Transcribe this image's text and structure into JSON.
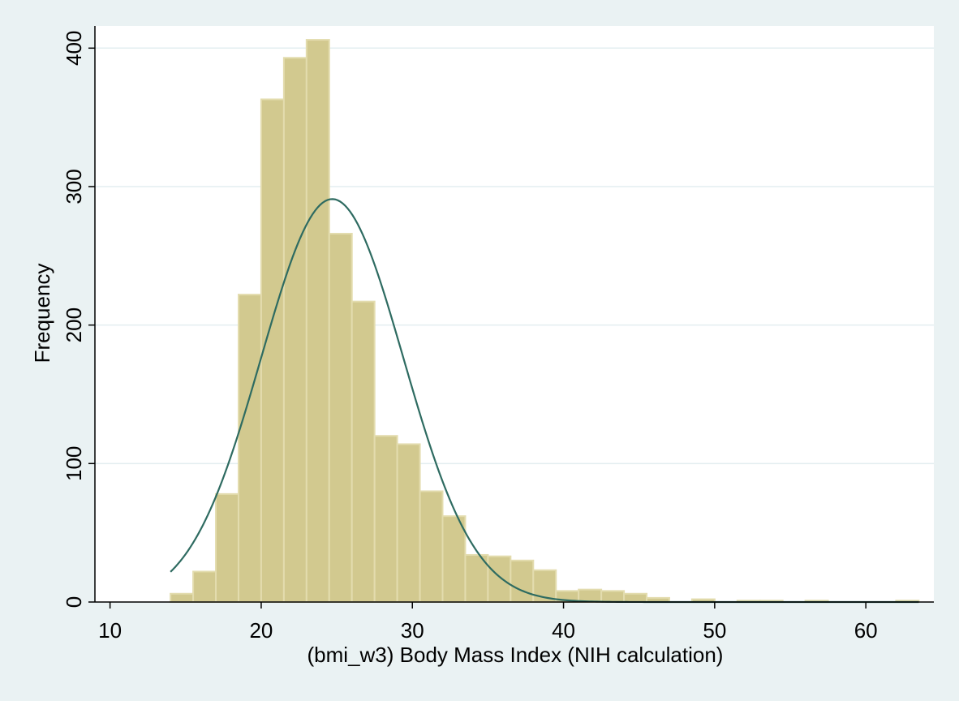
{
  "chart_data": {
    "type": "bar",
    "subtype": "histogram",
    "title": "",
    "xlabel": "(bmi_w3) Body Mass Index (NIH calculation)",
    "ylabel": "Frequency",
    "xlim": [
      9,
      64.5
    ],
    "ylim": [
      0,
      416
    ],
    "xticks": [
      10,
      20,
      30,
      40,
      50,
      60
    ],
    "yticks": [
      0,
      100,
      200,
      300,
      400
    ],
    "grid": true,
    "legend": "none",
    "bin_width": 1.5,
    "bin_start": 14,
    "bins": [
      {
        "x0": 14.0,
        "x1": 15.5,
        "value": 6
      },
      {
        "x0": 15.5,
        "x1": 17.0,
        "value": 22
      },
      {
        "x0": 17.0,
        "x1": 18.5,
        "value": 78
      },
      {
        "x0": 18.5,
        "x1": 20.0,
        "value": 222
      },
      {
        "x0": 20.0,
        "x1": 21.5,
        "value": 363
      },
      {
        "x0": 21.5,
        "x1": 23.0,
        "value": 393
      },
      {
        "x0": 23.0,
        "x1": 24.5,
        "value": 406
      },
      {
        "x0": 24.5,
        "x1": 26.0,
        "value": 266
      },
      {
        "x0": 26.0,
        "x1": 27.5,
        "value": 217
      },
      {
        "x0": 27.5,
        "x1": 29.0,
        "value": 120
      },
      {
        "x0": 29.0,
        "x1": 30.5,
        "value": 114
      },
      {
        "x0": 30.5,
        "x1": 32.0,
        "value": 80
      },
      {
        "x0": 32.0,
        "x1": 33.5,
        "value": 62
      },
      {
        "x0": 33.5,
        "x1": 35.0,
        "value": 34
      },
      {
        "x0": 35.0,
        "x1": 36.5,
        "value": 33
      },
      {
        "x0": 36.5,
        "x1": 38.0,
        "value": 30
      },
      {
        "x0": 38.0,
        "x1": 39.5,
        "value": 23
      },
      {
        "x0": 39.5,
        "x1": 41.0,
        "value": 8
      },
      {
        "x0": 41.0,
        "x1": 42.5,
        "value": 9
      },
      {
        "x0": 42.5,
        "x1": 44.0,
        "value": 8
      },
      {
        "x0": 44.0,
        "x1": 45.5,
        "value": 6
      },
      {
        "x0": 45.5,
        "x1": 47.0,
        "value": 3
      },
      {
        "x0": 47.0,
        "x1": 48.5,
        "value": 0
      },
      {
        "x0": 48.5,
        "x1": 50.0,
        "value": 2
      },
      {
        "x0": 50.0,
        "x1": 51.5,
        "value": 0
      },
      {
        "x0": 51.5,
        "x1": 53.0,
        "value": 1
      },
      {
        "x0": 53.0,
        "x1": 54.5,
        "value": 1
      },
      {
        "x0": 54.5,
        "x1": 56.0,
        "value": 0
      },
      {
        "x0": 56.0,
        "x1": 57.5,
        "value": 1
      },
      {
        "x0": 57.5,
        "x1": 59.0,
        "value": 0
      },
      {
        "x0": 59.0,
        "x1": 60.5,
        "value": 0
      },
      {
        "x0": 60.5,
        "x1": 62.0,
        "value": 0
      },
      {
        "x0": 62.0,
        "x1": 63.5,
        "value": 1
      }
    ],
    "normal_curve": {
      "mean": 24.7,
      "sd": 4.7,
      "peak_frequency": 291,
      "x_range": [
        14,
        63.5
      ]
    },
    "colors": {
      "bar_fill": "#d2c98f",
      "bar_stroke": "#e3dcae",
      "curve": "#2e6b61",
      "plot_bg": "#ffffff",
      "page_bg": "#eaf2f3",
      "grid": "#e3eef0",
      "axis": "#000000"
    }
  }
}
